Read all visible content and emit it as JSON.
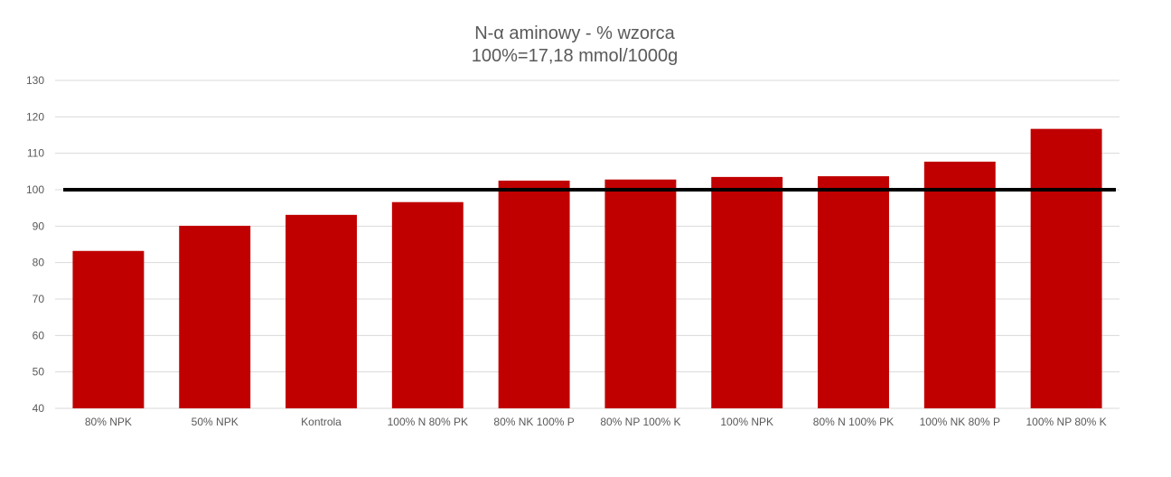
{
  "chart_data": {
    "type": "bar",
    "title": "N-α aminowy - % wzorca",
    "subtitle": "100%=17,18 mmol/1000g",
    "categories": [
      "80% NPK",
      "50% NPK",
      "Kontrola",
      "100% N 80% PK",
      "80% NK 100% P",
      "80% NP 100% K",
      "100% NPK",
      "80% N 100% PK",
      "100% NK 80% P",
      "100% NP 80% K"
    ],
    "series": [
      {
        "values": [
          83.2,
          90.1,
          93.1,
          96.6,
          102.5,
          102.8,
          103.5,
          103.7,
          107.7,
          116.7
        ]
      }
    ],
    "reference_line": 100,
    "ylim": [
      40,
      130
    ],
    "yticks": [
      40,
      50,
      60,
      70,
      80,
      90,
      100,
      110,
      120,
      130
    ],
    "grid": true,
    "legend": "none",
    "colors": {
      "bar": "#c00000",
      "reference_line": "#000000",
      "grid": "#d9d9d9",
      "text": "#595959"
    }
  }
}
